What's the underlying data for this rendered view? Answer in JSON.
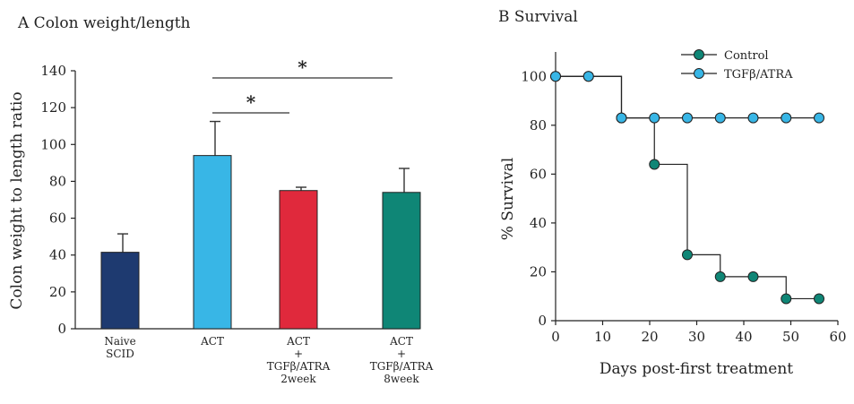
{
  "chart_data": [
    {
      "type": "bar",
      "title": "A  Colon weight/length",
      "ylabel": "Colon weight to length ratio",
      "xlabel": "",
      "ylim": [
        0,
        140
      ],
      "yticks": [
        "0",
        "20",
        "40",
        "60",
        "80",
        "100",
        "120",
        "140"
      ],
      "categories": [
        [
          "Naive",
          "SCID"
        ],
        [
          "ACT"
        ],
        [
          "ACT",
          "+",
          "TGFβ/ATRA",
          "2week"
        ],
        [
          "ACT",
          "+",
          "TGFβ/ATRA",
          "8week"
        ]
      ],
      "values": [
        41.5,
        94,
        75,
        74
      ],
      "errors": [
        10,
        18.5,
        1.8,
        13
      ],
      "colors": [
        "#1e3a70",
        "#38b6e6",
        "#e0293c",
        "#0f8676"
      ],
      "significance": [
        {
          "from": 1,
          "to": 2,
          "label": "*"
        },
        {
          "from": 1,
          "to": 3,
          "label": "*"
        }
      ],
      "grid": false
    },
    {
      "type": "line",
      "step": true,
      "title": "B  Survival",
      "xlabel": "Days post-first treatment",
      "ylabel": "% Survival",
      "xlim": [
        0,
        60
      ],
      "ylim": [
        0,
        110
      ],
      "xticks": [
        "0",
        "10",
        "20",
        "30",
        "40",
        "50",
        "60"
      ],
      "yticks": [
        "0",
        "20",
        "40",
        "60",
        "80",
        "100"
      ],
      "legend_position": "top-right",
      "series": [
        {
          "name": "Control",
          "color": "#0f8676",
          "points": [
            [
              0,
              100
            ],
            [
              7,
              100
            ],
            [
              14,
              83
            ],
            [
              21,
              64
            ],
            [
              28,
              27
            ],
            [
              35,
              18
            ],
            [
              42,
              18
            ],
            [
              49,
              9
            ],
            [
              56,
              9
            ]
          ]
        },
        {
          "name": "TGFβ/ATRA",
          "color": "#38b6e6",
          "points": [
            [
              0,
              100
            ],
            [
              7,
              100
            ],
            [
              14,
              83
            ],
            [
              21,
              83
            ],
            [
              28,
              83
            ],
            [
              35,
              83
            ],
            [
              42,
              83
            ],
            [
              49,
              83
            ],
            [
              56,
              83
            ]
          ]
        }
      ],
      "grid": false
    }
  ]
}
